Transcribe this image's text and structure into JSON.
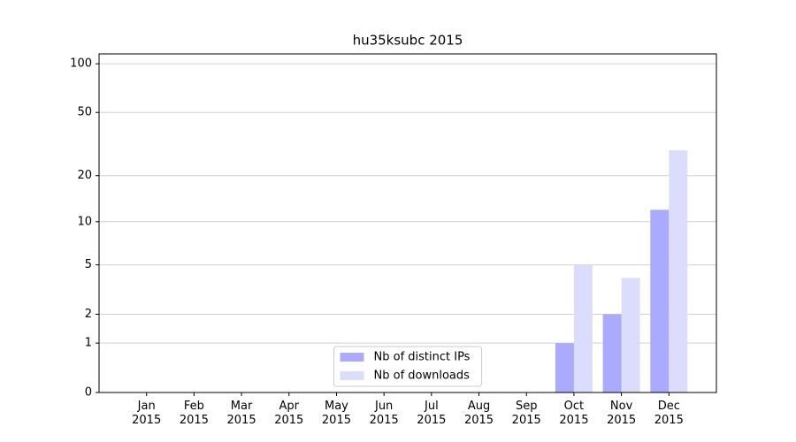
{
  "chart_data": {
    "type": "bar",
    "title": "hu35ksubc 2015",
    "categories": [
      "Jan\n2015",
      "Feb\n2015",
      "Mar\n2015",
      "Apr\n2015",
      "May\n2015",
      "Jun\n2015",
      "Jul\n2015",
      "Aug\n2015",
      "Sep\n2015",
      "Oct\n2015",
      "Nov\n2015",
      "Dec\n2015"
    ],
    "series": [
      {
        "name": "Nb of distinct IPs",
        "color": "#aaaaff",
        "values": [
          0,
          0,
          0,
          0,
          0,
          0,
          0,
          0,
          0,
          1,
          2,
          12
        ]
      },
      {
        "name": "Nb of downloads",
        "color": "#dcdcfd",
        "values": [
          0,
          0,
          0,
          0,
          0,
          0,
          0,
          0,
          0,
          5,
          4,
          29
        ]
      }
    ],
    "yscale": "log1p",
    "ylim": [
      0,
      115
    ],
    "yticks": [
      0,
      1,
      2,
      5,
      10,
      20,
      50,
      100
    ],
    "grid": true,
    "legend": "lower center"
  }
}
